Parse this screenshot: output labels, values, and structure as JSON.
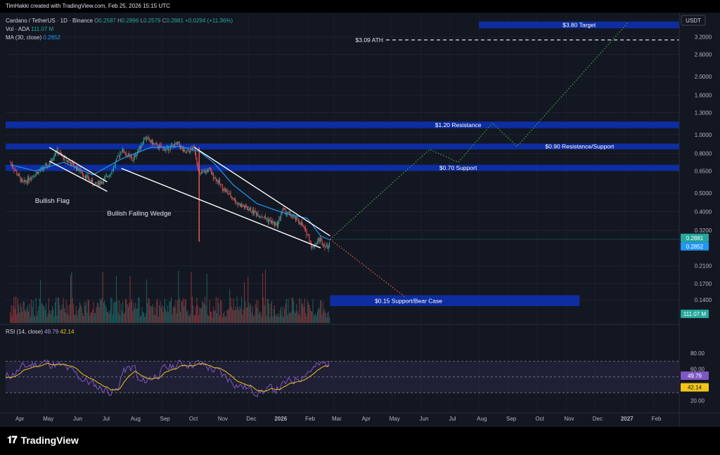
{
  "header": {
    "text": "TimHakki created with TradingView.com, Feb 25, 2026 15:15 UTC"
  },
  "legend": {
    "symbol": "Cardano / TetherUS · 1D · Binance",
    "ohlc": [
      {
        "k": "O",
        "v": "0.2587"
      },
      {
        "k": "H",
        "v": "0.2896"
      },
      {
        "k": "L",
        "v": "0.2579"
      },
      {
        "k": "C",
        "v": "0.2881"
      }
    ],
    "change": "+0.0294 (+11.36%)",
    "vol_label": "Vol · ADA",
    "vol_value": "111.07 M",
    "ma_label": "MA (30, close)",
    "ma_value": "0.2852",
    "rsi_label": "RSI (14, close)",
    "rsi_value": "49.79",
    "rsi_ma_value": "42.14"
  },
  "currency": "USDT",
  "colors": {
    "background": "#131722",
    "up": "#26a69a",
    "down": "#ef5350",
    "zone": "#0d2ea8",
    "ma": "#2196f3",
    "rsi": "#7e57c2",
    "rsi_ma": "#f0c419",
    "bull_path": "#43a047",
    "bear_path": "#ef5350"
  },
  "chart_data": {
    "type": "candlestick",
    "symbol": "ADA/USDT",
    "scale": "log",
    "price_ticks": [
      "3.2000",
      "2.6000",
      "2.0000",
      "1.6000",
      "1.3000",
      "1.0000",
      "0.8000",
      "0.6500",
      "0.5000",
      "0.4000",
      "0.3200",
      "0.2100",
      "0.1700",
      "0.1400"
    ],
    "price_tick_values": [
      3.2,
      2.6,
      2.0,
      1.6,
      1.3,
      1.0,
      0.8,
      0.65,
      0.5,
      0.4,
      0.32,
      0.21,
      0.17,
      0.14
    ],
    "price_range": [
      0.11,
      4.0
    ],
    "last_price_tag": "0.2881",
    "ma_tag": "0.2852",
    "volume_tag": "111.07 M",
    "time_labels": [
      "Apr",
      "May",
      "Jun",
      "Jul",
      "Aug",
      "Sep",
      "Oct",
      "Nov",
      "Dec",
      "2026",
      "Feb",
      "Mar",
      "Apr",
      "May",
      "Jun",
      "Jul",
      "Aug",
      "Sep",
      "Oct",
      "Nov",
      "Dec",
      "2027",
      "Feb"
    ],
    "price_path": [
      [
        "2025-03-25",
        0.72
      ],
      [
        "2025-04-07",
        0.56
      ],
      [
        "2025-04-20",
        0.63
      ],
      [
        "2025-05-05",
        0.7
      ],
      [
        "2025-05-12",
        0.83
      ],
      [
        "2025-05-20",
        0.76
      ],
      [
        "2025-06-05",
        0.66
      ],
      [
        "2025-06-22",
        0.55
      ],
      [
        "2025-07-01",
        0.58
      ],
      [
        "2025-07-10",
        0.65
      ],
      [
        "2025-07-20",
        0.84
      ],
      [
        "2025-08-01",
        0.74
      ],
      [
        "2025-08-14",
        0.97
      ],
      [
        "2025-08-25",
        0.88
      ],
      [
        "2025-09-05",
        0.84
      ],
      [
        "2025-09-18",
        0.9
      ],
      [
        "2025-09-25",
        0.8
      ],
      [
        "2025-10-05",
        0.86
      ],
      [
        "2025-10-10",
        0.62
      ],
      [
        "2025-10-20",
        0.66
      ],
      [
        "2025-11-04",
        0.53
      ],
      [
        "2025-11-20",
        0.44
      ],
      [
        "2025-12-02",
        0.41
      ],
      [
        "2025-12-15",
        0.38
      ],
      [
        "2025-12-31",
        0.34
      ],
      [
        "2026-01-06",
        0.41
      ],
      [
        "2026-01-15",
        0.38
      ],
      [
        "2026-01-25",
        0.35
      ],
      [
        "2026-02-02",
        0.3
      ],
      [
        "2026-02-06",
        0.26
      ],
      [
        "2026-02-14",
        0.29
      ],
      [
        "2026-02-22",
        0.26
      ],
      [
        "2026-02-25",
        0.2881
      ]
    ],
    "ma_path": [
      [
        "2025-03-25",
        0.7
      ],
      [
        "2025-04-20",
        0.65
      ],
      [
        "2025-05-20",
        0.72
      ],
      [
        "2025-06-20",
        0.62
      ],
      [
        "2025-07-20",
        0.75
      ],
      [
        "2025-08-20",
        0.86
      ],
      [
        "2025-09-20",
        0.87
      ],
      [
        "2025-10-10",
        0.82
      ],
      [
        "2025-10-25",
        0.72
      ],
      [
        "2025-11-15",
        0.55
      ],
      [
        "2025-12-10",
        0.44
      ],
      [
        "2026-01-10",
        0.39
      ],
      [
        "2026-02-01",
        0.37
      ],
      [
        "2026-02-15",
        0.3
      ],
      [
        "2026-02-25",
        0.2852
      ]
    ],
    "zones": [
      {
        "label": "$1.20 Resistance",
        "low": 1.08,
        "high": 1.17,
        "t_start": "2025-03-20",
        "t_end": "2027-02-28"
      },
      {
        "label": "$0.90 Resistance/Support",
        "low": 0.84,
        "high": 0.9,
        "t_start": "2025-03-20",
        "t_end": "2027-02-28"
      },
      {
        "label": "$0.70 Support",
        "low": 0.65,
        "high": 0.7,
        "t_start": "2025-03-20",
        "t_end": "2027-02-28"
      },
      {
        "label": "$0.15 Support/Bear Case",
        "low": 0.13,
        "high": 0.148,
        "t_start": "2026-02-25",
        "t_end": "2026-11-15"
      },
      {
        "label": "$3.80 Target",
        "low": 3.55,
        "high": 3.85,
        "t_start": "2026-08-01",
        "t_end": "2027-02-28"
      }
    ],
    "ath": {
      "label": "$3.09 ATH",
      "value": 3.09
    },
    "patterns": [
      {
        "label": "Bullish Flag",
        "lines": [
          [
            [
              "2025-05-05",
              0.86
            ],
            [
              "2025-07-05",
              0.57
            ]
          ],
          [
            [
              "2025-05-05",
              0.73
            ],
            [
              "2025-07-05",
              0.51
            ]
          ]
        ]
      },
      {
        "label": "Bullish Falling Wedge",
        "lines": [
          [
            [
              "2025-10-05",
              0.86
            ],
            [
              "2026-02-25",
              0.3
            ]
          ],
          [
            [
              "2025-07-20",
              0.67
            ],
            [
              "2026-02-15",
              0.26
            ]
          ]
        ]
      }
    ],
    "bull_scenario": [
      [
        "2026-02-25",
        0.2881
      ],
      [
        "2026-06-10",
        0.84
      ],
      [
        "2026-07-10",
        0.72
      ],
      [
        "2026-08-15",
        1.15
      ],
      [
        "2026-09-10",
        0.87
      ],
      [
        "2027-01-05",
        3.8
      ]
    ],
    "bear_scenario": [
      [
        "2026-02-25",
        0.2881
      ],
      [
        "2026-05-15",
        0.145
      ]
    ],
    "rsi_ticks": [
      "80.00",
      "60.00",
      "20.00"
    ],
    "rsi_tick_values": [
      80,
      60,
      20
    ],
    "rsi_band": [
      30,
      70
    ],
    "rsi_last": 49.79,
    "rsi_ma_last": 42.14
  }
}
